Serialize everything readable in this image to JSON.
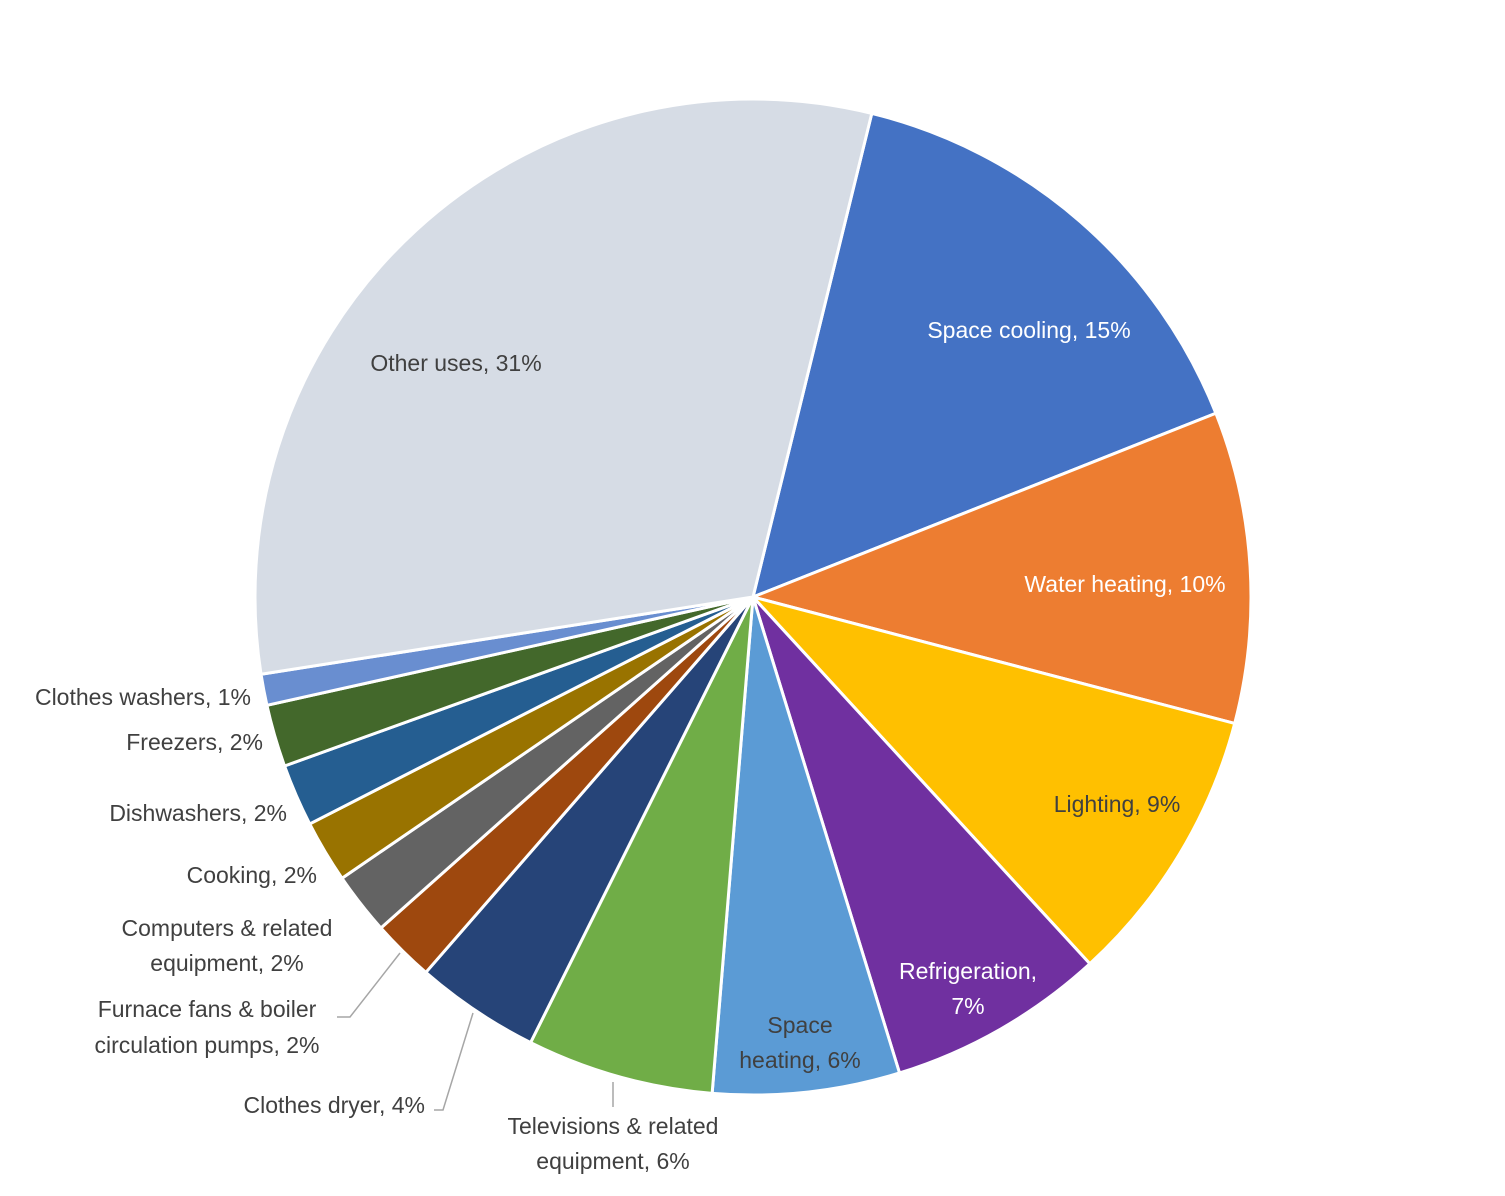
{
  "chart_data": {
    "type": "pie",
    "title": "",
    "legend": "none",
    "data_labels": "category name and percent",
    "slices": [
      {
        "label": "Space cooling",
        "value": 15,
        "display": "Space cooling, 15%",
        "color": "#4472C4"
      },
      {
        "label": "Water heating",
        "value": 10,
        "display": "Water heating, 10%",
        "color": "#ED7D31"
      },
      {
        "label": "Lighting",
        "value": 9,
        "display": "Lighting, 9%",
        "color": "#FFC000"
      },
      {
        "label": "Refrigeration",
        "value": 7,
        "display": "Refrigeration, 7%",
        "color": "#7030A0"
      },
      {
        "label": "Space heating",
        "value": 6,
        "display": "Space heating, 6%",
        "color": "#5B9BD5"
      },
      {
        "label": "Televisions & related equipment",
        "value": 6,
        "display": "Televisions & related equipment, 6%",
        "color": "#70AD47"
      },
      {
        "label": "Clothes dryer",
        "value": 4,
        "display": "Clothes dryer, 4%",
        "color": "#264478"
      },
      {
        "label": "Furnace fans & boiler circulation pumps",
        "value": 2,
        "display": "Furnace fans & boiler circulation pumps, 2%",
        "color": "#9E480E"
      },
      {
        "label": "Computers & related equipment",
        "value": 2,
        "display": "Computers & related equipment, 2%",
        "color": "#636363"
      },
      {
        "label": "Cooking",
        "value": 2,
        "display": "Cooking, 2%",
        "color": "#997300"
      },
      {
        "label": "Dishwashers",
        "value": 2,
        "display": "Dishwashers, 2%",
        "color": "#255E91"
      },
      {
        "label": "Freezers",
        "value": 2,
        "display": "Freezers, 2%",
        "color": "#43682B"
      },
      {
        "label": "Clothes washers",
        "value": 1,
        "display": "Clothes washers, 1%",
        "color": "#698ED0"
      },
      {
        "label": "Other uses",
        "value": 31,
        "display": "Other uses, 31%",
        "color": "#D6DCE5"
      }
    ]
  }
}
